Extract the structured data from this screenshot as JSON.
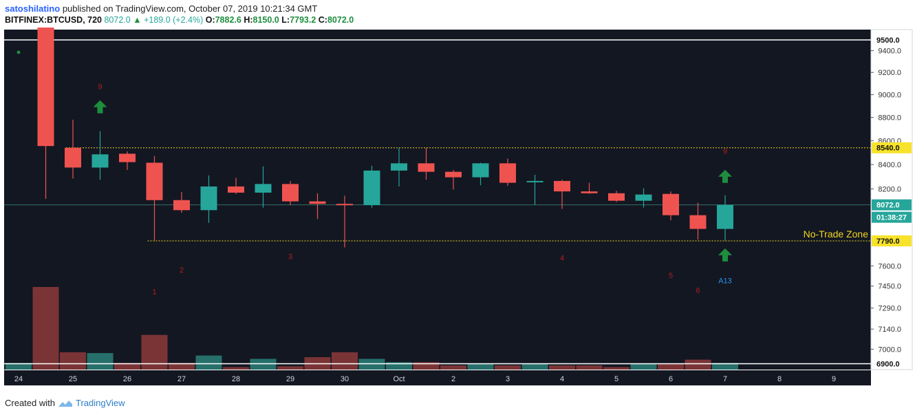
{
  "header": {
    "user": "satoshilatino",
    "published": "published on TradingView.com, October 07, 2019 10:21:34 GMT",
    "symbol": "BITFINEX:BTCUSD, 720",
    "last": "8072.0",
    "change": "+189.0 (+2.4%)",
    "o_label": "O:",
    "o_val": "7882.6",
    "h_label": "H:",
    "h_val": "8150.0",
    "l_label": "L:",
    "l_val": "7793.2",
    "c_label": "C:",
    "c_val": "8072.0"
  },
  "footer": {
    "created": "Created with",
    "brand": "TradingView"
  },
  "colors": {
    "background": "#131722",
    "bull": "#26a69a",
    "bear": "#ef5350",
    "arrow": "#1e8e3e",
    "level_line": "#ffffff",
    "zone_line": "#f2d61f",
    "td_count": "#b71c1c"
  },
  "chart_data": {
    "type": "candlestick",
    "interval": "720",
    "y_axis": {
      "scale": "log",
      "ticks": [
        "9400.0",
        "9200.0",
        "9000.0",
        "8800.0",
        "8600.0",
        "8400.0",
        "8200.0",
        "7600.0",
        "7450.0",
        "7290.0",
        "7140.0",
        "7000.0"
      ],
      "ylim": [
        6850,
        9700
      ]
    },
    "x_axis": {
      "ticks": [
        {
          "label": "24",
          "x": 0
        },
        {
          "label": "25",
          "x": 2
        },
        {
          "label": "26",
          "x": 4
        },
        {
          "label": "27",
          "x": 6
        },
        {
          "label": "28",
          "x": 8
        },
        {
          "label": "29",
          "x": 10
        },
        {
          "label": "30",
          "x": 12
        },
        {
          "label": "Oct",
          "x": 14
        },
        {
          "label": "2",
          "x": 16
        },
        {
          "label": "3",
          "x": 18
        },
        {
          "label": "4",
          "x": 20
        },
        {
          "label": "5",
          "x": 22
        },
        {
          "label": "6",
          "x": 24
        },
        {
          "label": "7",
          "x": 26
        },
        {
          "label": "8",
          "x": 28
        },
        {
          "label": "9",
          "x": 30
        }
      ]
    },
    "candles": [
      {
        "x": 1,
        "o": 9680,
        "h": 9700,
        "l": 8120,
        "c": 8555
      },
      {
        "x": 2,
        "o": 8540,
        "h": 8780,
        "l": 8285,
        "c": 8375
      },
      {
        "x": 3,
        "o": 8375,
        "h": 8680,
        "l": 8275,
        "c": 8485
      },
      {
        "x": 4,
        "o": 8490,
        "h": 8510,
        "l": 8355,
        "c": 8420
      },
      {
        "x": 5,
        "o": 8415,
        "h": 8470,
        "l": 7790,
        "c": 8110
      },
      {
        "x": 6,
        "o": 8110,
        "h": 8175,
        "l": 8010,
        "c": 8030
      },
      {
        "x": 7,
        "o": 8030,
        "h": 8310,
        "l": 7930,
        "c": 8220
      },
      {
        "x": 8,
        "o": 8220,
        "h": 8290,
        "l": 8160,
        "c": 8170
      },
      {
        "x": 9,
        "o": 8170,
        "h": 8385,
        "l": 8050,
        "c": 8240
      },
      {
        "x": 10,
        "o": 8240,
        "h": 8265,
        "l": 8070,
        "c": 8100
      },
      {
        "x": 11,
        "o": 8100,
        "h": 8165,
        "l": 7960,
        "c": 8080
      },
      {
        "x": 12,
        "o": 8080,
        "h": 8145,
        "l": 7740,
        "c": 8070
      },
      {
        "x": 13,
        "o": 8070,
        "h": 8390,
        "l": 8050,
        "c": 8350
      },
      {
        "x": 14,
        "o": 8350,
        "h": 8540,
        "l": 8220,
        "c": 8410
      },
      {
        "x": 15,
        "o": 8410,
        "h": 8540,
        "l": 8275,
        "c": 8340
      },
      {
        "x": 16,
        "o": 8340,
        "h": 8355,
        "l": 8195,
        "c": 8295
      },
      {
        "x": 17,
        "o": 8295,
        "h": 8415,
        "l": 8230,
        "c": 8410
      },
      {
        "x": 18,
        "o": 8410,
        "h": 8450,
        "l": 8225,
        "c": 8250
      },
      {
        "x": 19,
        "o": 8255,
        "h": 8315,
        "l": 8070,
        "c": 8265
      },
      {
        "x": 20,
        "o": 8265,
        "h": 8275,
        "l": 8040,
        "c": 8180
      },
      {
        "x": 21,
        "o": 8180,
        "h": 8250,
        "l": 8160,
        "c": 8165
      },
      {
        "x": 22,
        "o": 8165,
        "h": 8185,
        "l": 8095,
        "c": 8105
      },
      {
        "x": 23,
        "o": 8105,
        "h": 8205,
        "l": 8050,
        "c": 8155
      },
      {
        "x": 24,
        "o": 8160,
        "h": 8180,
        "l": 7950,
        "c": 7990
      },
      {
        "x": 25,
        "o": 7990,
        "h": 8090,
        "l": 7800,
        "c": 7882.6
      },
      {
        "x": 26,
        "o": 7882.6,
        "h": 8150,
        "l": 7793.2,
        "c": 8072
      }
    ],
    "volume": [
      {
        "x": 0,
        "v": 0.08,
        "bull": true
      },
      {
        "x": 1,
        "v": 1.0,
        "bull": false
      },
      {
        "x": 2,
        "v": 0.21,
        "bull": false
      },
      {
        "x": 3,
        "v": 0.2,
        "bull": true
      },
      {
        "x": 4,
        "v": 0.08,
        "bull": false
      },
      {
        "x": 5,
        "v": 0.42,
        "bull": false
      },
      {
        "x": 6,
        "v": 0.08,
        "bull": false
      },
      {
        "x": 7,
        "v": 0.17,
        "bull": true
      },
      {
        "x": 8,
        "v": 0.03,
        "bull": false
      },
      {
        "x": 9,
        "v": 0.13,
        "bull": true
      },
      {
        "x": 10,
        "v": 0.04,
        "bull": false
      },
      {
        "x": 11,
        "v": 0.15,
        "bull": false
      },
      {
        "x": 12,
        "v": 0.21,
        "bull": false
      },
      {
        "x": 13,
        "v": 0.13,
        "bull": true
      },
      {
        "x": 14,
        "v": 0.09,
        "bull": true
      },
      {
        "x": 15,
        "v": 0.09,
        "bull": false
      },
      {
        "x": 16,
        "v": 0.05,
        "bull": false
      },
      {
        "x": 17,
        "v": 0.07,
        "bull": true
      },
      {
        "x": 18,
        "v": 0.05,
        "bull": false
      },
      {
        "x": 19,
        "v": 0.07,
        "bull": true
      },
      {
        "x": 20,
        "v": 0.05,
        "bull": false
      },
      {
        "x": 21,
        "v": 0.05,
        "bull": false
      },
      {
        "x": 22,
        "v": 0.03,
        "bull": false
      },
      {
        "x": 23,
        "v": 0.07,
        "bull": true
      },
      {
        "x": 24,
        "v": 0.07,
        "bull": false
      },
      {
        "x": 25,
        "v": 0.12,
        "bull": false
      },
      {
        "x": 26,
        "v": 0.08,
        "bull": true
      }
    ],
    "levels": [
      {
        "price": 9500,
        "label": "9500.0",
        "style": "solid",
        "color": "#ffffff"
      },
      {
        "price": 8540,
        "label": "8540.0",
        "style": "dotted",
        "color": "#f2d61f",
        "from_x": 2
      },
      {
        "price": 7790,
        "label": "7790.0",
        "style": "dotted",
        "color": "#f2d61f",
        "from_x": 5
      },
      {
        "price": 6900,
        "label": "6900.0",
        "style": "solid",
        "color": "#ffffff"
      }
    ],
    "price_line": {
      "price": 8072,
      "label": "8072.0",
      "countdown": "01:38:27"
    },
    "zone_label": "No-Trade Zone",
    "td_counts": [
      {
        "text": "1",
        "x": 5,
        "price": 7390
      },
      {
        "text": "2",
        "x": 6,
        "price": 7550
      },
      {
        "text": "3",
        "x": 10,
        "price": 7650
      },
      {
        "text": "4",
        "x": 20,
        "price": 7640
      },
      {
        "text": "5",
        "x": 24,
        "price": 7510
      },
      {
        "text": "6",
        "x": 25,
        "price": 7400
      },
      {
        "text": "9",
        "x": 3,
        "price": 9050
      },
      {
        "text": "9",
        "x": 26,
        "price": 8490
      }
    ],
    "arrows": [
      {
        "x": 3,
        "price": 8890
      },
      {
        "x": 26,
        "price": 8300
      },
      {
        "x": 26,
        "price": 7680
      }
    ],
    "marker_label": {
      "text": "A13",
      "x": 26,
      "price": 7470
    }
  }
}
